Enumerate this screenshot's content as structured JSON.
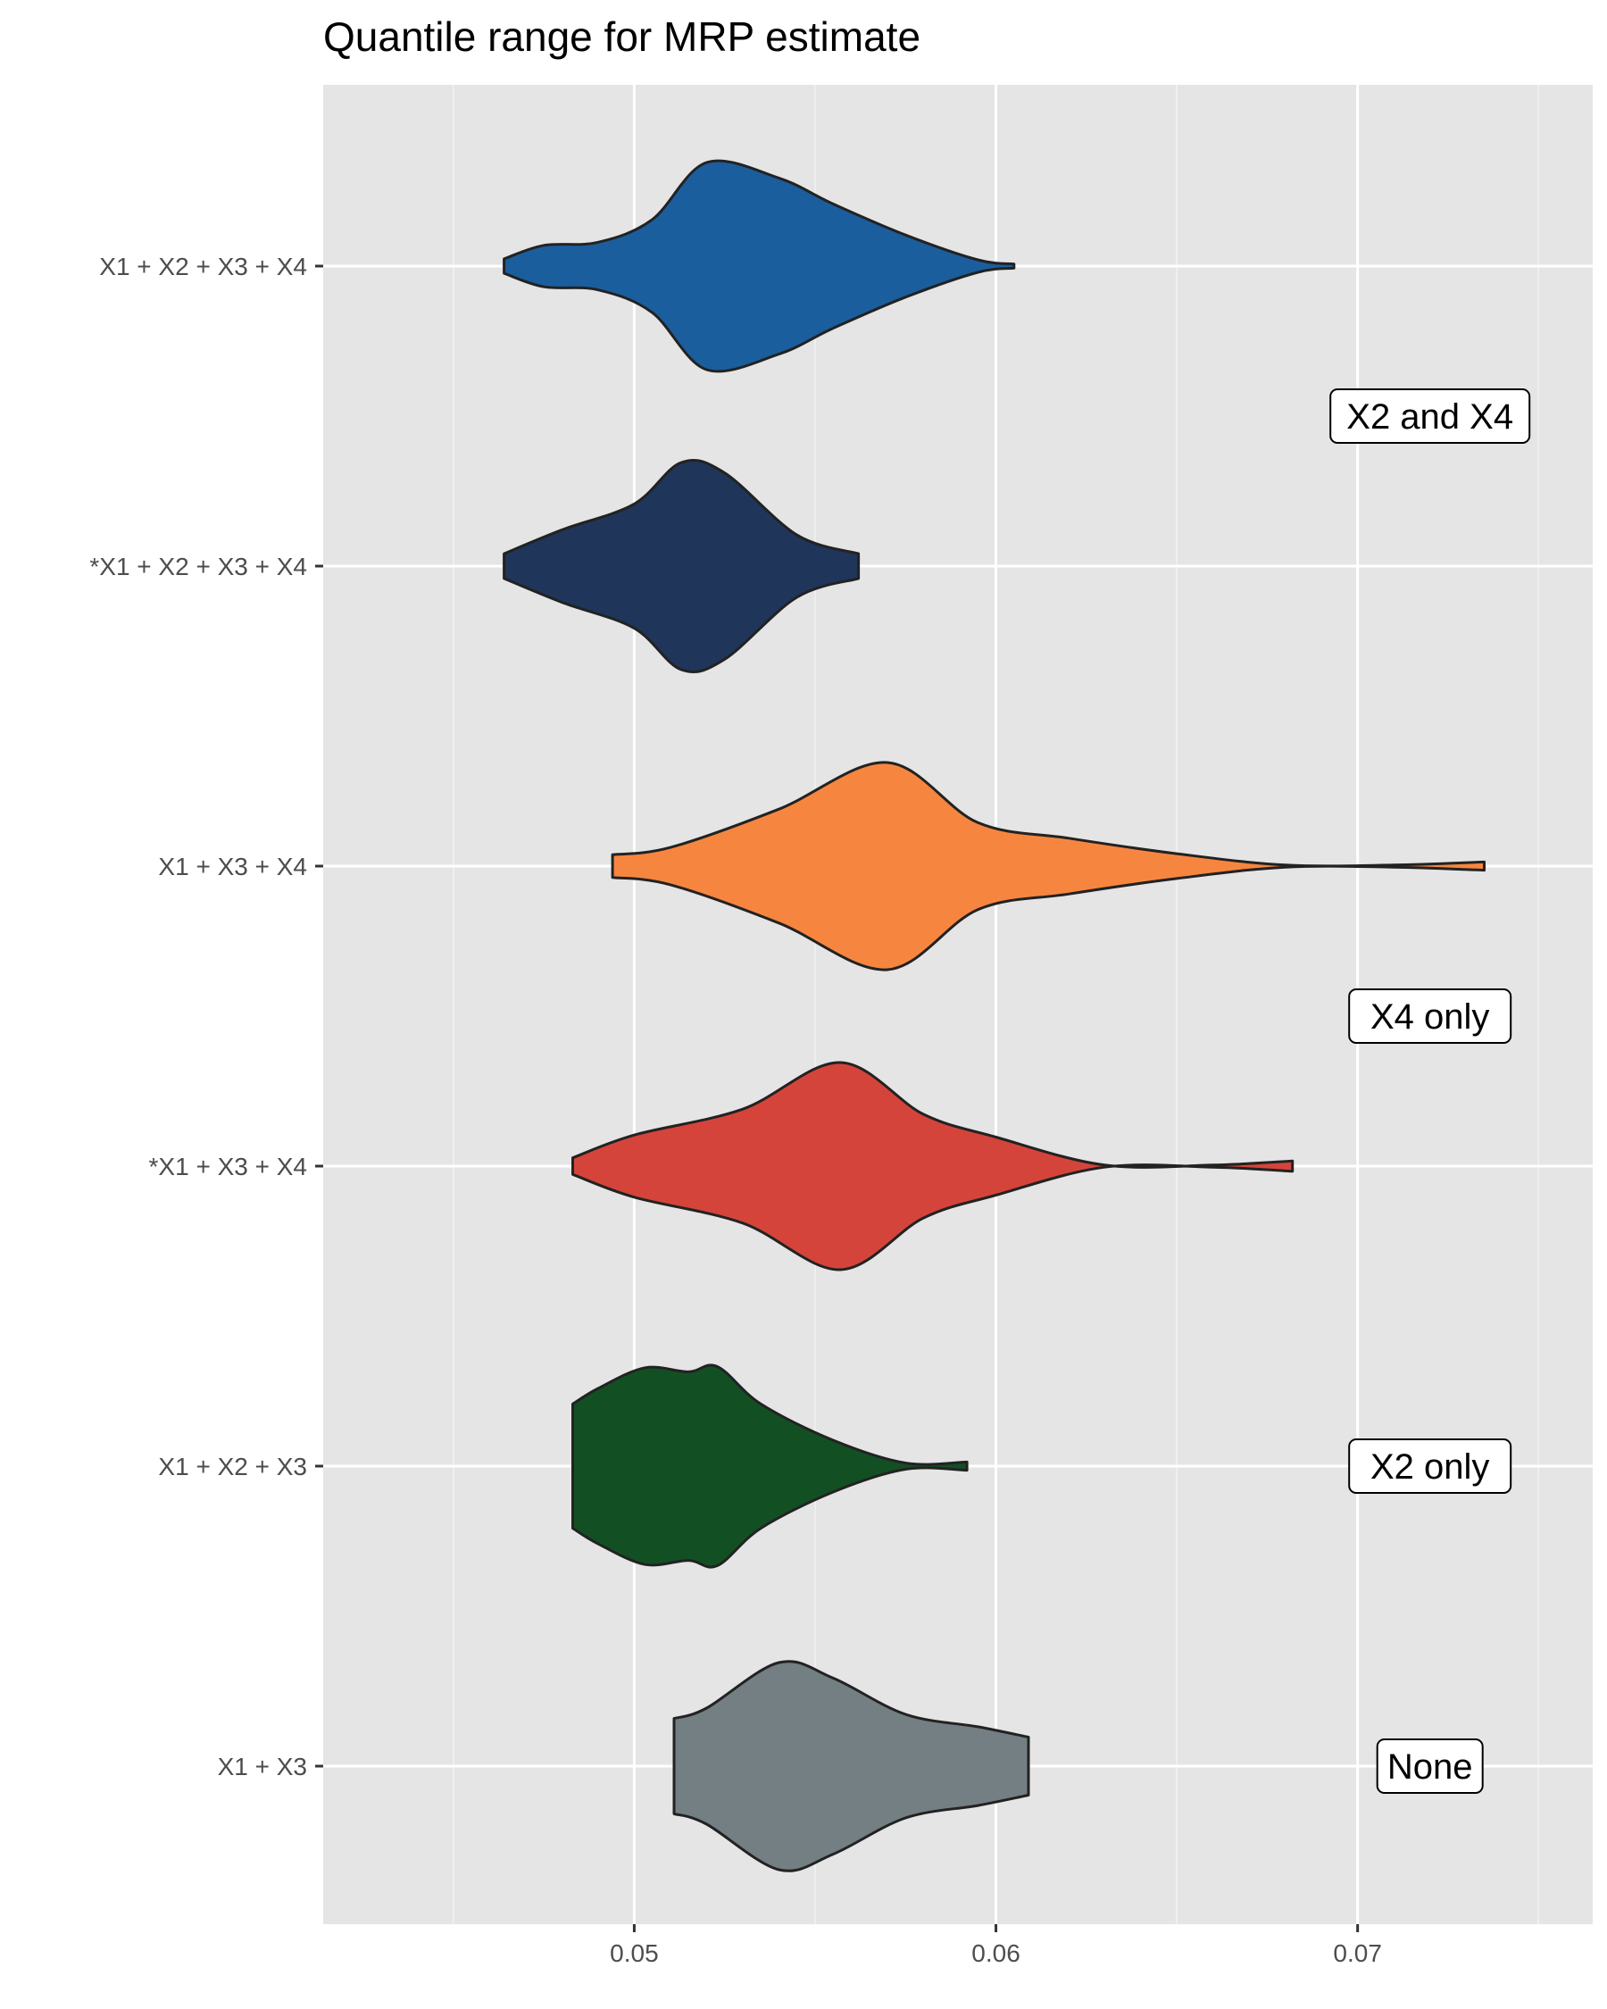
{
  "chart_data": {
    "type": "violin",
    "title": "Quantile range for MRP estimate",
    "xlabel": "",
    "ylabel": "",
    "xlim": [
      0.0414,
      0.0765
    ],
    "x_ticks": [
      0.05,
      0.06,
      0.07
    ],
    "x_tick_labels": [
      "0.05",
      "0.06",
      "0.07"
    ],
    "minor_x_ticks": [
      0.045,
      0.055,
      0.065,
      0.075
    ],
    "grid": true,
    "categories": [
      "X1 + X2 + X3 + X4",
      "*X1 + X2 + X3 + X4",
      "X1 + X3 + X4",
      "*X1 + X3 + X4",
      "X1 + X2 + X3",
      "X1 + X3"
    ],
    "series": [
      {
        "category": "X1 + X2 + X3 + X4",
        "color": "#1a5e9e",
        "min": 0.0464,
        "max": 0.0605,
        "density": [
          [
            0.0464,
            0.07
          ],
          [
            0.0475,
            0.2
          ],
          [
            0.049,
            0.23
          ],
          [
            0.0505,
            0.45
          ],
          [
            0.052,
            1.0
          ],
          [
            0.054,
            0.85
          ],
          [
            0.0555,
            0.6
          ],
          [
            0.0575,
            0.3
          ],
          [
            0.0595,
            0.06
          ],
          [
            0.0605,
            0.02
          ]
        ]
      },
      {
        "category": "*X1 + X2 + X3 + X4",
        "color": "#1f3559",
        "min": 0.0464,
        "max": 0.0562,
        "density": [
          [
            0.0464,
            0.12
          ],
          [
            0.048,
            0.35
          ],
          [
            0.05,
            0.6
          ],
          [
            0.0513,
            1.0
          ],
          [
            0.0525,
            0.9
          ],
          [
            0.0545,
            0.3
          ],
          [
            0.0562,
            0.12
          ]
        ]
      },
      {
        "category": "X1 + X3 + X4",
        "color": "#f6863f",
        "min": 0.0494,
        "max": 0.0735,
        "density": [
          [
            0.0494,
            0.11
          ],
          [
            0.051,
            0.18
          ],
          [
            0.054,
            0.55
          ],
          [
            0.057,
            1.0
          ],
          [
            0.0595,
            0.42
          ],
          [
            0.062,
            0.27
          ],
          [
            0.065,
            0.12
          ],
          [
            0.068,
            0.01
          ],
          [
            0.071,
            0.01
          ],
          [
            0.0735,
            0.04
          ]
        ]
      },
      {
        "category": "*X1 + X3 + X4",
        "color": "#d5443a",
        "min": 0.0483,
        "max": 0.0682,
        "density": [
          [
            0.0483,
            0.08
          ],
          [
            0.05,
            0.3
          ],
          [
            0.053,
            0.55
          ],
          [
            0.0557,
            1.0
          ],
          [
            0.058,
            0.5
          ],
          [
            0.06,
            0.28
          ],
          [
            0.063,
            0.01
          ],
          [
            0.066,
            0.01
          ],
          [
            0.0682,
            0.05
          ]
        ]
      },
      {
        "category": "X1 + X2 + X3",
        "color": "#125023",
        "min": 0.0483,
        "max": 0.0592,
        "density": [
          [
            0.0483,
            0.6
          ],
          [
            0.049,
            0.75
          ],
          [
            0.0503,
            0.95
          ],
          [
            0.0515,
            0.91
          ],
          [
            0.0523,
            0.96
          ],
          [
            0.0535,
            0.6
          ],
          [
            0.0555,
            0.25
          ],
          [
            0.0575,
            0.03
          ],
          [
            0.0592,
            0.04
          ]
        ]
      },
      {
        "category": "X1 + X3",
        "color": "#737f82",
        "min": 0.0511,
        "max": 0.0609,
        "density": [
          [
            0.0511,
            0.46
          ],
          [
            0.052,
            0.56
          ],
          [
            0.054,
            1.0
          ],
          [
            0.0555,
            0.85
          ],
          [
            0.0575,
            0.5
          ],
          [
            0.0595,
            0.38
          ],
          [
            0.0609,
            0.28
          ]
        ]
      }
    ],
    "annotations": [
      {
        "label": "X2 and X4",
        "x": 0.072,
        "between": [
          "X1 + X2 + X3 + X4",
          "*X1 + X2 + X3 + X4"
        ]
      },
      {
        "label": "X4 only",
        "x": 0.072,
        "between": [
          "X1 + X3 + X4",
          "*X1 + X3 + X4"
        ]
      },
      {
        "label": "X2 only",
        "x": 0.072,
        "on": "X1 + X2 + X3"
      },
      {
        "label": "None",
        "x": 0.072,
        "on": "X1 + X3"
      }
    ]
  }
}
